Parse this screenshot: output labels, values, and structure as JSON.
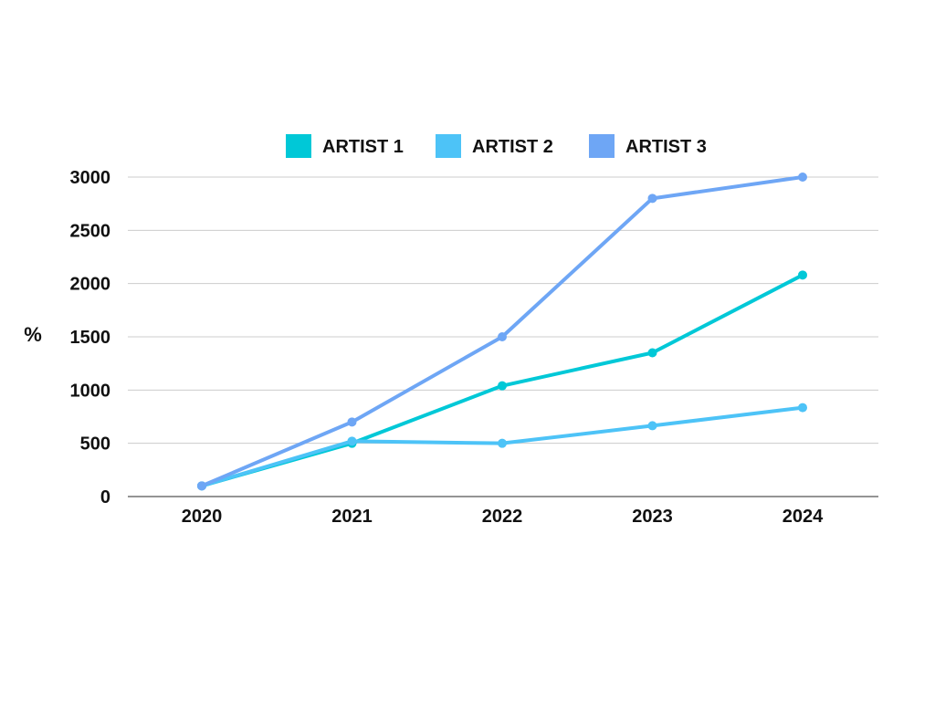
{
  "chart_data": {
    "type": "line",
    "x": [
      "2020",
      "2021",
      "2022",
      "2023",
      "2024"
    ],
    "ylabel": "%",
    "ylim": [
      0,
      3000
    ],
    "yticks": [
      "0",
      "500",
      "1000",
      "1500",
      "2000",
      "2500",
      "3000"
    ],
    "grid": true,
    "legend_position": "top",
    "series": [
      {
        "name": "ARTIST 1",
        "color": "#00c8d7",
        "values": [
          100,
          500,
          1040,
          1350,
          2080
        ]
      },
      {
        "name": "ARTIST 2",
        "color": "#4dc3f7",
        "values": [
          100,
          520,
          500,
          665,
          835
        ]
      },
      {
        "name": "ARTIST 3",
        "color": "#6ea6f5",
        "values": [
          100,
          700,
          1500,
          2800,
          3000
        ]
      }
    ]
  }
}
